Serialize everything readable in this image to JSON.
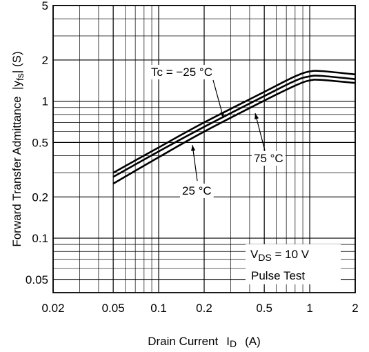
{
  "chart_data": {
    "type": "line",
    "xlabel_main": "Drain Current",
    "xlabel_symbol": "I",
    "xlabel_sub": "D",
    "xlabel_unit": "(A)",
    "ylabel": "Forward Transfer Admittance  |y",
    "ylabel_sub": "fs",
    "ylabel_unit": "| (S)",
    "x_scale": "log",
    "y_scale": "log",
    "xlim": [
      0.02,
      2
    ],
    "ylim": [
      0.04,
      5
    ],
    "grid": true,
    "x_ticks": [
      {
        "value": 0.02,
        "label": "0.02"
      },
      {
        "value": 0.05,
        "label": "0.05"
      },
      {
        "value": 0.1,
        "label": "0.1"
      },
      {
        "value": 0.2,
        "label": "0.2"
      },
      {
        "value": 0.5,
        "label": "0.5"
      },
      {
        "value": 1,
        "label": "1"
      },
      {
        "value": 2,
        "label": "2"
      }
    ],
    "y_ticks": [
      {
        "value": 5,
        "label": "5"
      },
      {
        "value": 2,
        "label": "2"
      },
      {
        "value": 1,
        "label": "1"
      },
      {
        "value": 0.5,
        "label": "0.5"
      },
      {
        "value": 0.2,
        "label": "0.2"
      },
      {
        "value": 0.1,
        "label": "0.1"
      },
      {
        "value": 0.05,
        "label": "0.05"
      }
    ],
    "series": [
      {
        "name": "Tc = −25 °C",
        "x": [
          0.05,
          0.1,
          0.2,
          0.5,
          0.8,
          1.0,
          1.2,
          2.0
        ],
        "y": [
          0.3,
          0.46,
          0.7,
          1.17,
          1.52,
          1.65,
          1.66,
          1.57
        ]
      },
      {
        "name": "25 °C",
        "x": [
          0.05,
          0.1,
          0.2,
          0.5,
          0.8,
          1.0,
          1.2,
          2.0
        ],
        "y": [
          0.28,
          0.43,
          0.65,
          1.09,
          1.41,
          1.52,
          1.53,
          1.45
        ]
      },
      {
        "name": "75 °C",
        "x": [
          0.05,
          0.1,
          0.2,
          0.5,
          0.8,
          1.0,
          1.2,
          2.0
        ],
        "y": [
          0.25,
          0.39,
          0.6,
          1.01,
          1.3,
          1.42,
          1.43,
          1.36
        ]
      }
    ],
    "annotations": [
      {
        "text": "Tc = −25 °C"
      },
      {
        "text": "75 °C"
      },
      {
        "text": "25 °C"
      }
    ],
    "legend_box": {
      "vds_prefix": "V",
      "vds_sub": "DS",
      "vds_rest": " = 10 V",
      "line2": "Pulse Test"
    }
  }
}
